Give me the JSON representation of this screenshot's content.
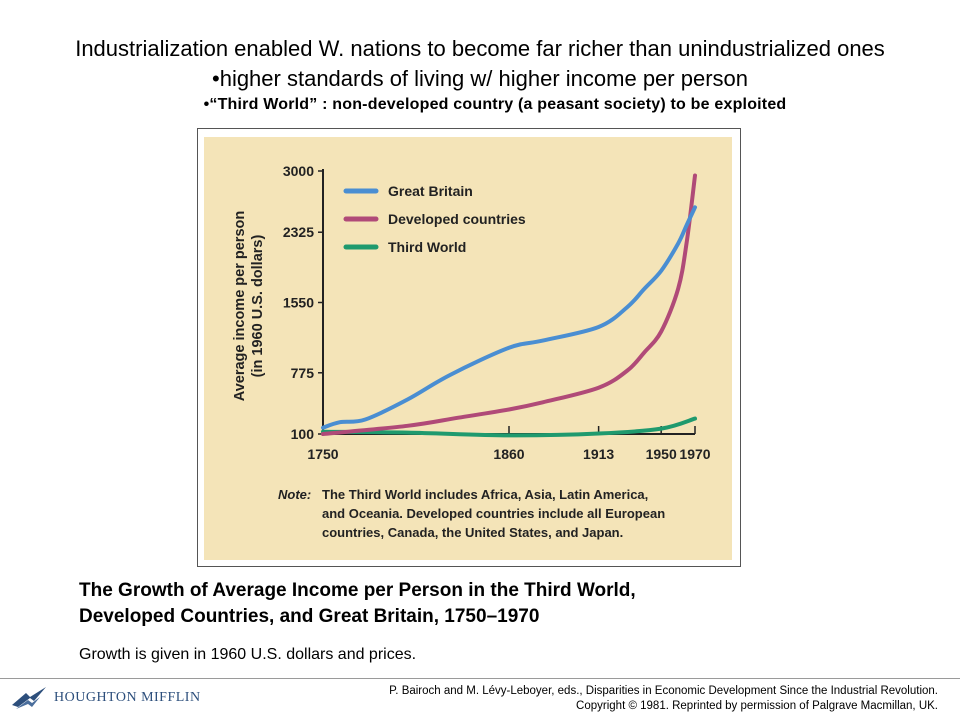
{
  "slide": {
    "title": "Industrialization enabled W. nations to become far richer than unindustrialized ones",
    "bullet_1": "•higher standards of living w/ higher income per person",
    "bullet_2": "•“Third World” : non-developed country (a peasant society) to be exploited"
  },
  "caption": {
    "line_1": "The Growth of Average Income per Person in the Third World,",
    "line_2": "Developed Countries, and Great Britain, 1750–1970",
    "sub": "Growth is given in 1960 U.S. dollars and prices."
  },
  "footer": {
    "publisher": "HOUGHTON MIFFLIN",
    "source_line_1": "P. Bairoch and M. Lévy-Leboyer, eds., Disparities in Economic Development Since the Industrial Revolution.",
    "source_line_2": "Copyright © 1981. Reprinted by permission of Palgrave Macmillan, UK."
  },
  "chart_data": {
    "type": "line",
    "title": "",
    "xlabel": "",
    "ylabel": "Average income per person",
    "ylabel_2": "(in 1960 U.S. dollars)",
    "x_ticks": [
      1750,
      1860,
      1913,
      1950,
      1970
    ],
    "y_ticks": [
      100,
      775,
      1550,
      2325,
      3000
    ],
    "xlim": [
      1750,
      1970
    ],
    "ylim": [
      100,
      3000
    ],
    "legend_position": "top-left",
    "note_label": "Note:",
    "note": [
      "The Third World includes Africa, Asia, Latin America,",
      "and Oceania. Developed countries include all European",
      "countries, Canada, the United States, and Japan."
    ],
    "series": [
      {
        "name": "Great Britain",
        "color": "#4a8ed2",
        "x": [
          1750,
          1760,
          1775,
          1800,
          1825,
          1860,
          1880,
          1913,
          1930,
          1940,
          1950,
          1960,
          1965,
          1970
        ],
        "y": [
          170,
          230,
          260,
          480,
          750,
          1050,
          1130,
          1280,
          1500,
          1700,
          1900,
          2200,
          2400,
          2600
        ]
      },
      {
        "name": "Developed countries",
        "color": "#b04a78",
        "x": [
          1750,
          1800,
          1830,
          1860,
          1880,
          1913,
          1930,
          1940,
          1950,
          1960,
          1965,
          1970
        ],
        "y": [
          100,
          190,
          280,
          370,
          450,
          610,
          800,
          1000,
          1230,
          1700,
          2200,
          2950
        ]
      },
      {
        "name": "Third World",
        "color": "#1f9a6e",
        "x": [
          1750,
          1800,
          1860,
          1913,
          1950,
          1970
        ],
        "y": [
          125,
          115,
          85,
          105,
          160,
          270
        ]
      }
    ]
  }
}
